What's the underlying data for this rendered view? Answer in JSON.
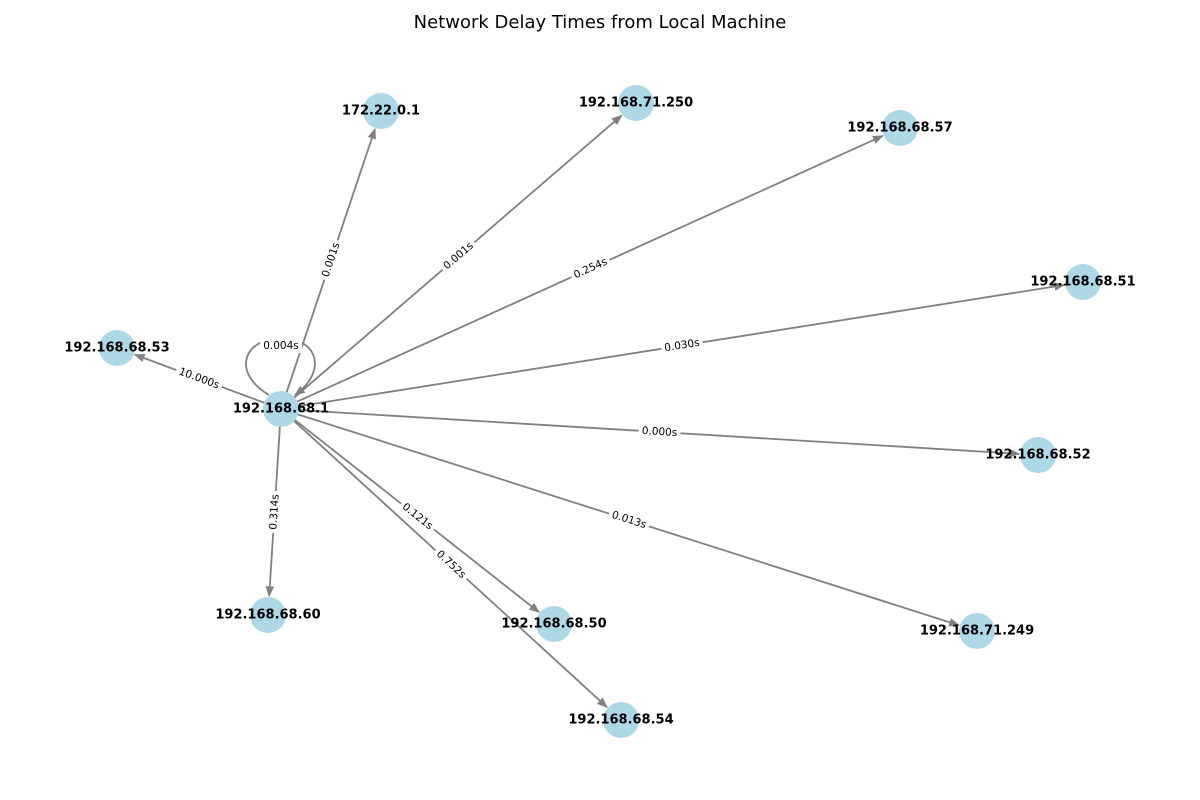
{
  "title": "Network Delay Times from Local Machine",
  "colors": {
    "node": "#add8e6",
    "edge": "#808080"
  },
  "chart_data": {
    "type": "network",
    "source": "192.168.68.1",
    "nodes": [
      "192.168.68.1",
      "172.22.0.1",
      "192.168.71.250",
      "192.168.68.57",
      "192.168.68.51",
      "192.168.68.53",
      "192.168.68.52",
      "192.168.68.60",
      "192.168.68.50",
      "192.168.68.54",
      "192.168.71.249"
    ],
    "edges": [
      {
        "to": "192.168.68.1",
        "label": "0.004s"
      },
      {
        "to": "172.22.0.1",
        "label": "0.001s"
      },
      {
        "to": "192.168.71.250",
        "label": "0.001s"
      },
      {
        "to": "192.168.68.57",
        "label": "0.254s"
      },
      {
        "to": "192.168.68.51",
        "label": "0.030s"
      },
      {
        "to": "192.168.68.53",
        "label": "10.000s"
      },
      {
        "to": "192.168.68.52",
        "label": "0.000s"
      },
      {
        "to": "192.168.68.60",
        "label": "0.314s"
      },
      {
        "to": "192.168.68.50",
        "label": "0.121s"
      },
      {
        "to": "192.168.68.54",
        "label": "0.752s"
      },
      {
        "to": "192.168.71.249",
        "label": "0.013s"
      }
    ]
  }
}
